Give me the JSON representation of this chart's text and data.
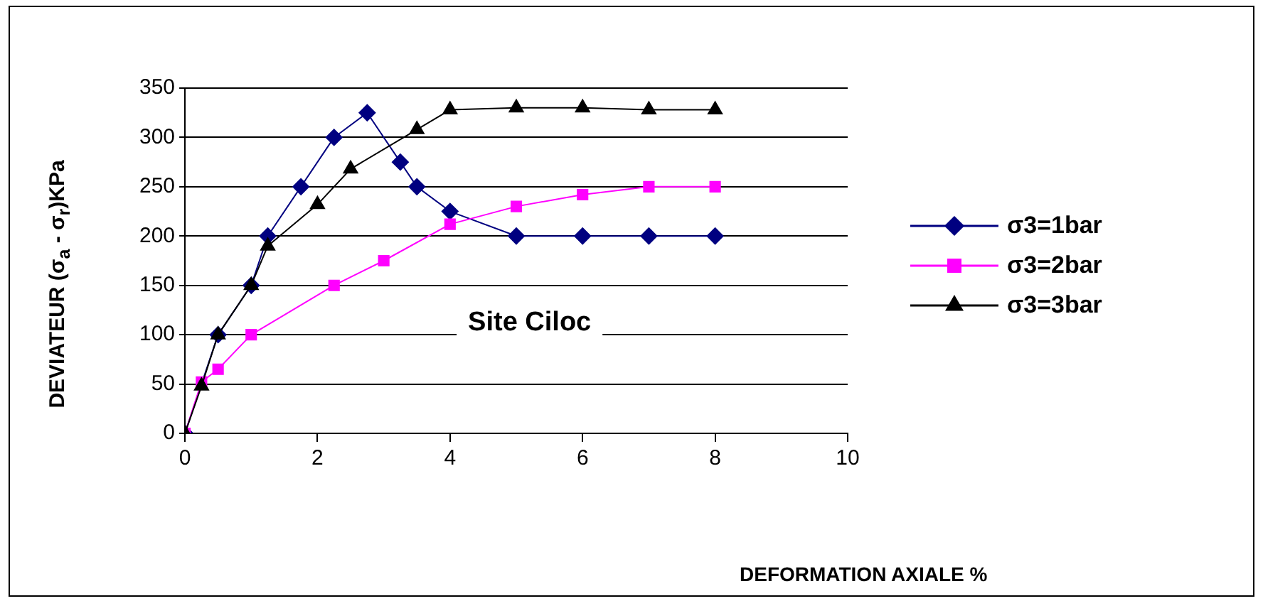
{
  "chart_data": {
    "type": "line",
    "xlabel": "DEFORMATION AXIALE %",
    "ylabel": "DEVIATEUR (σ$_{a}$ - σ$_{r}$)KPa",
    "annotations": [
      "Site Ciloc"
    ],
    "xlim": [
      0,
      10
    ],
    "xticks": [
      0,
      2,
      4,
      6,
      8,
      10
    ],
    "ylim": [
      0,
      350
    ],
    "yticks": [
      0,
      50,
      100,
      150,
      200,
      250,
      300,
      350
    ],
    "grid": "y",
    "legend": "right",
    "line_style": "solid",
    "series": [
      {
        "name": "σ3=1bar",
        "color": "#000080",
        "marker": "diamond",
        "x": [
          0,
          0.5,
          1,
          1.25,
          1.75,
          2.25,
          2.75,
          3.25,
          3.5,
          4,
          5,
          6,
          7,
          8
        ],
        "values": [
          0,
          100,
          150,
          200,
          250,
          300,
          325,
          275,
          250,
          225,
          200,
          200,
          200,
          200
        ]
      },
      {
        "name": "σ3=2bar",
        "color": "#ff00ff",
        "marker": "square",
        "x": [
          0,
          0.25,
          0.5,
          1,
          2.25,
          3,
          4,
          5,
          6,
          7,
          8
        ],
        "values": [
          0,
          52,
          65,
          100,
          150,
          175,
          212,
          230,
          242,
          250,
          250
        ]
      },
      {
        "name": "σ3=3bar",
        "color": "#000000",
        "marker": "triangle",
        "x": [
          0,
          0.25,
          0.5,
          1,
          1.25,
          2,
          2.5,
          3.5,
          4,
          5,
          6,
          7,
          8
        ],
        "values": [
          0,
          48,
          100,
          150,
          190,
          232,
          268,
          308,
          328,
          330,
          330,
          328,
          328
        ]
      }
    ]
  }
}
